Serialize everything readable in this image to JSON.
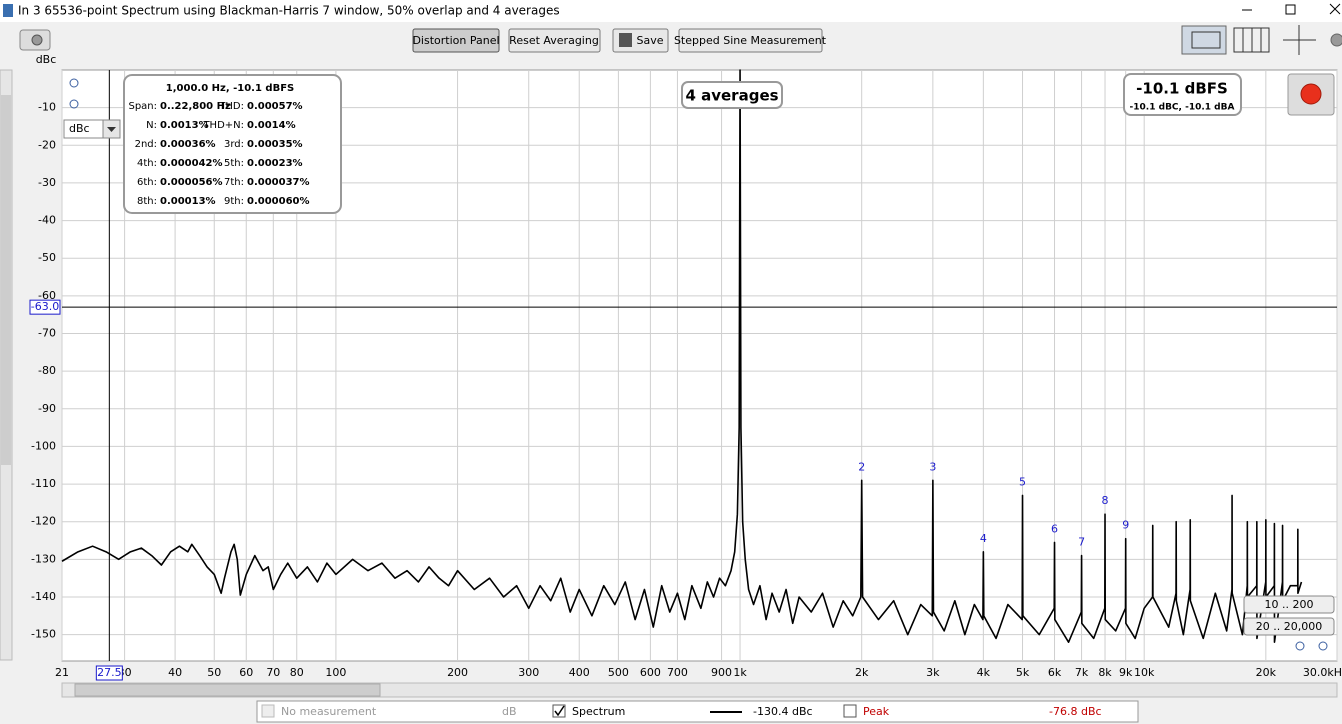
{
  "window": {
    "title": "In 3 65536-point Spectrum using Blackman-Harris 7 window, 50% overlap and 4 averages"
  },
  "toolbar": {
    "buttons": [
      "Distortion Panel",
      "Reset Averaging",
      "Save",
      "Stepped Sine Measurement"
    ]
  },
  "unit_selector": "dBc",
  "averages_label": "4 averages",
  "level_display": {
    "main": "-10.1 dBFS",
    "sub": "-10.1 dBC, -10.1 dBA"
  },
  "distortion_panel": {
    "heading": "1,000.0 Hz, -10.1 dBFS",
    "rows": [
      [
        "Span:",
        "0..22,800 Hz",
        "THD:",
        "0.00057%"
      ],
      [
        "N:",
        "0.0013%",
        "THD+N:",
        "0.0014%"
      ],
      [
        "2nd:",
        "0.00036%",
        "3rd:",
        "0.00035%"
      ],
      [
        "4th:",
        "0.000042%",
        "5th:",
        "0.00023%"
      ],
      [
        "6th:",
        "0.000056%",
        "7th:",
        "0.000037%"
      ],
      [
        "8th:",
        "0.00013%",
        "9th:",
        "0.000060%"
      ]
    ]
  },
  "zoom_presets": [
    "10 .. 200",
    "20 .. 20,000"
  ],
  "legend_bar": {
    "inactive": "No measurement",
    "inactive_unit": "dB",
    "spectrum_value": "-130.4 dBc",
    "peak_name": "Peak",
    "peak_value": "-76.8 dBc"
  },
  "chart_data": {
    "type": "line",
    "y_label": "dBc",
    "x_scale": "log",
    "grid": true,
    "xlim": [
      21,
      30000
    ],
    "ylim": [
      -157,
      0
    ],
    "xticks": [
      21,
      30,
      40,
      50,
      60,
      70,
      80,
      100,
      200,
      300,
      400,
      500,
      600,
      700,
      900,
      {
        "value": 1000,
        "label": "1k"
      },
      {
        "value": 2000,
        "label": "2k"
      },
      {
        "value": 3000,
        "label": "3k"
      },
      {
        "value": 4000,
        "label": "4k"
      },
      {
        "value": 5000,
        "label": "5k"
      },
      {
        "value": 6000,
        "label": "6k"
      },
      {
        "value": 7000,
        "label": "7k"
      },
      {
        "value": 8000,
        "label": "8k"
      },
      {
        "value": 9000,
        "label": "9k"
      },
      {
        "value": 10000,
        "label": "10k"
      },
      {
        "value": 20000,
        "label": "20k"
      },
      {
        "value": 30000,
        "label": "30.0kH"
      }
    ],
    "yticks": [
      -10,
      -20,
      -30,
      -40,
      -50,
      -60,
      -70,
      -80,
      -90,
      -100,
      -110,
      -120,
      -130,
      -140,
      -150
    ],
    "cursor": {
      "x": 27.5,
      "y": {
        "value": -63,
        "label": "-63.0"
      }
    },
    "x": [
      21,
      23,
      25,
      27,
      29,
      31,
      33,
      35,
      37,
      39,
      41,
      43,
      44,
      46,
      48,
      50,
      52,
      53,
      55,
      56,
      57,
      58,
      60,
      63,
      66,
      68,
      70,
      73,
      76,
      80,
      85,
      90,
      95,
      100,
      110,
      120,
      130,
      140,
      150,
      160,
      170,
      180,
      190,
      200,
      220,
      240,
      260,
      280,
      300,
      320,
      340,
      360,
      380,
      400,
      430,
      460,
      490,
      520,
      550,
      580,
      610,
      640,
      670,
      700,
      730,
      760,
      800,
      830,
      860,
      890,
      920,
      950,
      970,
      985,
      995,
      1000,
      1005,
      1015,
      1030,
      1050,
      1080,
      1120,
      1160,
      1200,
      1250,
      1300,
      1350,
      1400,
      1500,
      1600,
      1700,
      1800,
      1900,
      1990,
      2000,
      2010,
      2200,
      2400,
      2600,
      2800,
      2990,
      3000,
      3010,
      3200,
      3400,
      3600,
      3800,
      3990,
      4000,
      4010,
      4300,
      4600,
      4990,
      5000,
      5010,
      5500,
      5990,
      6000,
      6010,
      6500,
      6990,
      7000,
      7010,
      7500,
      7990,
      8000,
      8010,
      8500,
      8990,
      9000,
      9010,
      9500,
      10000,
      10490,
      10500,
      10510,
      11500,
      11990,
      12000,
      12010,
      12500,
      12990,
      13000,
      13010,
      14000,
      15000,
      16000,
      16490,
      16500,
      16510,
      17500,
      17990,
      18000,
      18010,
      18990,
      19000,
      19010,
      19990,
      20000,
      20010,
      20990,
      21000,
      21010,
      21990,
      22000,
      22010,
      23000,
      23990,
      24000,
      24010,
      24500
    ],
    "series": [
      {
        "name": "Spectrum",
        "color": "#000000",
        "values": [
          -130.5,
          -128,
          -126.5,
          -128,
          -130,
          -128,
          -127,
          -129,
          -131.5,
          -128,
          -126.5,
          -128,
          -126,
          -129,
          -132,
          -134,
          -139,
          -135,
          -128,
          -126,
          -130,
          -139.5,
          -134,
          -129,
          -133,
          -132,
          -138,
          -134,
          -131,
          -135,
          -132,
          -136,
          -131,
          -134,
          -130,
          -133,
          -131,
          -135,
          -133,
          -136,
          -132,
          -135,
          -137,
          -133,
          -138,
          -135,
          -140,
          -137,
          -143,
          -137,
          -141,
          -135,
          -144,
          -138,
          -145,
          -137,
          -142,
          -136,
          -146,
          -138,
          -148,
          -137,
          -144,
          -139,
          -146,
          -137,
          -143,
          -136,
          -140,
          -135,
          -137,
          -133,
          -128,
          -118,
          -95,
          0,
          -95,
          -120,
          -130,
          -138,
          -142,
          -137,
          -146,
          -139,
          -144,
          -138,
          -147,
          -140,
          -144,
          -139,
          -148,
          -141,
          -145,
          -140,
          -109,
          -140,
          -146,
          -141,
          -150,
          -142,
          -145,
          -109,
          -144,
          -149,
          -141,
          -150,
          -142,
          -146,
          -128,
          -145,
          -151,
          -142,
          -146,
          -113,
          -145,
          -150,
          -143,
          -125.5,
          -146,
          -152,
          -144,
          -129,
          -147,
          -151,
          -143,
          -118,
          -146,
          -149,
          -143,
          -124.5,
          -147,
          -151,
          -143,
          -140,
          -121,
          -140,
          -148,
          -139,
          -120,
          -141,
          -150,
          -138,
          -119.5,
          -141,
          -151,
          -139,
          -149,
          -138,
          -113,
          -139,
          -150,
          -137,
          -120,
          -140,
          -137,
          -120,
          -151,
          -136,
          -119.5,
          -140,
          -137,
          -120.5,
          -152,
          -136,
          -121,
          -141,
          -137,
          -137,
          -122,
          -139,
          -136
        ]
      }
    ],
    "harmonics": {
      "labels": [
        "2",
        "3",
        "4",
        "5",
        "6",
        "7",
        "8",
        "9"
      ],
      "x": [
        2000,
        3000,
        4000,
        5000,
        6000,
        7000,
        8000,
        9000
      ],
      "values": [
        -109,
        -109,
        -128,
        -113,
        -125.5,
        -129,
        -118,
        -124.5
      ]
    }
  }
}
